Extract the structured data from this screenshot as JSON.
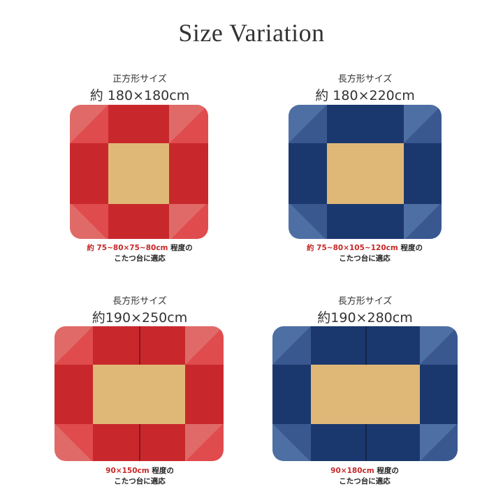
{
  "title": "Size Variation",
  "colors": {
    "red": "#c8282c",
    "blue": "#1b386e",
    "center": "#dfb877",
    "highlight": "#c62828"
  },
  "items": [
    {
      "kind": "正方形サイズ",
      "size": "約 180×180cm",
      "fit_highlight": "約 75~80×75~80cm",
      "fit_suffix": " 程度の",
      "fit_line2": "こたつ台に適応",
      "color": "red"
    },
    {
      "kind": "長方形サイズ",
      "size": "約 180×220cm",
      "fit_highlight": "約 75~80×105~120cm",
      "fit_suffix": " 程度の",
      "fit_line2": "こたつ台に適応",
      "color": "blue"
    },
    {
      "kind": "長方形サイズ",
      "size": "約190×250cm",
      "fit_highlight": "90×150cm",
      "fit_suffix": " 程度の",
      "fit_line2": "こたつ台に適応",
      "color": "red"
    },
    {
      "kind": "長方形サイズ",
      "size": "約190×280cm",
      "fit_highlight": "90×180cm",
      "fit_suffix": " 程度の",
      "fit_line2": "こたつ台に適応",
      "color": "blue"
    }
  ]
}
